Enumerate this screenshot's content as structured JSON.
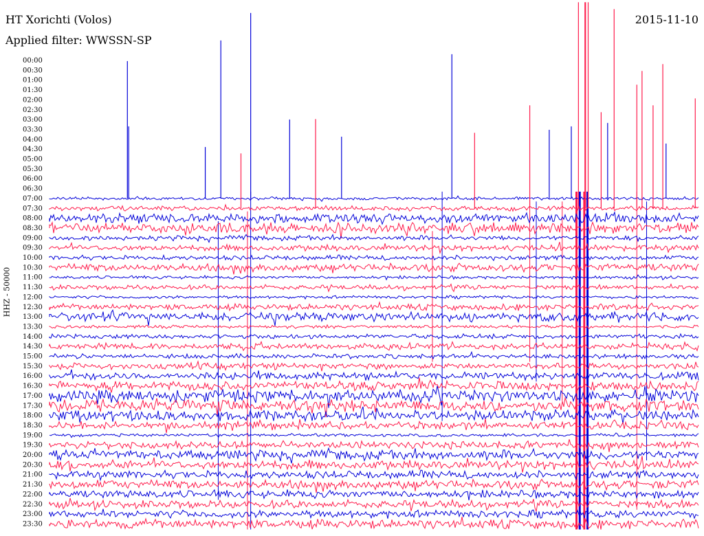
{
  "header": {
    "station": "HT Xorichti (Volos)",
    "filter": "Applied filter: WWSSN-SP",
    "date": "2015-11-10"
  },
  "chart_data": {
    "type": "line",
    "title": "HT Xorichti (Volos)",
    "subtitle": "Applied filter: WWSSN-SP",
    "date": "2015-11-10",
    "ylabel": "HHZ - 50000",
    "row_labels": [
      "00:00",
      "00:30",
      "01:00",
      "01:30",
      "02:00",
      "02:30",
      "03:00",
      "03:30",
      "04:00",
      "04:30",
      "05:00",
      "05:30",
      "06:00",
      "06:30",
      "07:00",
      "07:30",
      "08:00",
      "08:30",
      "09:00",
      "09:30",
      "10:00",
      "10:30",
      "11:00",
      "11:30",
      "12:00",
      "12:30",
      "13:00",
      "13:30",
      "14:00",
      "14:30",
      "15:00",
      "15:30",
      "16:00",
      "16:30",
      "17:00",
      "17:30",
      "18:00",
      "18:30",
      "19:00",
      "19:30",
      "20:00",
      "20:30",
      "21:00",
      "21:30",
      "22:00",
      "22:30",
      "23:00",
      "23:30"
    ],
    "series": [
      {
        "color": "#0000d8"
      },
      {
        "color": "#ff1a4a"
      }
    ],
    "trace_start_row": 14,
    "row_noise": [
      0,
      0,
      0,
      0,
      0,
      0,
      0,
      0,
      0,
      0,
      0,
      0,
      0,
      0,
      2,
      3,
      6,
      7,
      3,
      4,
      3,
      5,
      2,
      3,
      2,
      4,
      6,
      2,
      3,
      4,
      3,
      4,
      5,
      6,
      8,
      8,
      7,
      5,
      2,
      5,
      6,
      6,
      5,
      6,
      5,
      5,
      5,
      6
    ],
    "spikes": [
      {
        "row": 14,
        "x": 0.12,
        "up": 200
      },
      {
        "row": 14,
        "x": 0.264,
        "up": 230
      },
      {
        "row": 14,
        "x": 0.31,
        "up": 270
      },
      {
        "row": 14,
        "x": 0.62,
        "up": 210
      },
      {
        "row": 14,
        "x": 0.122,
        "up": 105
      },
      {
        "row": 14,
        "x": 0.37,
        "up": 115
      },
      {
        "row": 14,
        "x": 0.45,
        "up": 90
      },
      {
        "row": 14,
        "x": 0.24,
        "up": 75
      },
      {
        "row": 14,
        "x": 0.77,
        "up": 100
      },
      {
        "row": 14,
        "x": 0.804,
        "up": 105
      },
      {
        "row": 14,
        "x": 0.86,
        "up": 110
      },
      {
        "row": 14,
        "x": 0.95,
        "up": 80
      },
      {
        "row": 15,
        "x": 0.815,
        "up": 300
      },
      {
        "row": 15,
        "x": 0.826,
        "up": 300
      },
      {
        "row": 15,
        "x": 0.83,
        "up": 300
      },
      {
        "row": 15,
        "x": 0.825,
        "up": 300
      },
      {
        "row": 15,
        "x": 0.87,
        "up": 290
      },
      {
        "row": 15,
        "x": 0.905,
        "up": 180
      },
      {
        "row": 15,
        "x": 0.913,
        "up": 200
      },
      {
        "row": 15,
        "x": 0.945,
        "up": 210
      },
      {
        "row": 15,
        "x": 0.995,
        "up": 160
      },
      {
        "row": 15,
        "x": 0.41,
        "up": 130
      },
      {
        "row": 15,
        "x": 0.295,
        "up": 80
      },
      {
        "row": 15,
        "x": 0.655,
        "up": 110
      },
      {
        "row": 15,
        "x": 0.74,
        "up": 150
      },
      {
        "row": 15,
        "x": 0.85,
        "up": 140
      },
      {
        "row": 15,
        "x": 0.93,
        "up": 150
      }
    ],
    "long_lines": [
      {
        "x": 0.31,
        "from_row": 14,
        "to_row": 47
      },
      {
        "x": 0.305,
        "from_row": 16,
        "to_row": 47
      },
      {
        "x": 0.26,
        "from_row": 17,
        "to_row": 44
      },
      {
        "x": 0.812,
        "from_row": 14,
        "to_row": 47
      },
      {
        "x": 0.817,
        "from_row": 14,
        "to_row": 47
      },
      {
        "x": 0.824,
        "from_row": 14,
        "to_row": 47
      },
      {
        "x": 0.829,
        "from_row": 14,
        "to_row": 47
      },
      {
        "x": 0.905,
        "from_row": 14,
        "to_row": 45
      },
      {
        "x": 0.605,
        "from_row": 14,
        "to_row": 36
      },
      {
        "x": 0.74,
        "from_row": 15,
        "to_row": 30
      },
      {
        "x": 0.75,
        "from_row": 15,
        "to_row": 32
      },
      {
        "x": 0.79,
        "from_row": 15,
        "to_row": 34
      },
      {
        "x": 0.92,
        "from_row": 15,
        "to_row": 40
      },
      {
        "x": 0.59,
        "from_row": 18,
        "to_row": 30
      }
    ],
    "x_range": [
      0,
      30
    ],
    "grid": false
  }
}
